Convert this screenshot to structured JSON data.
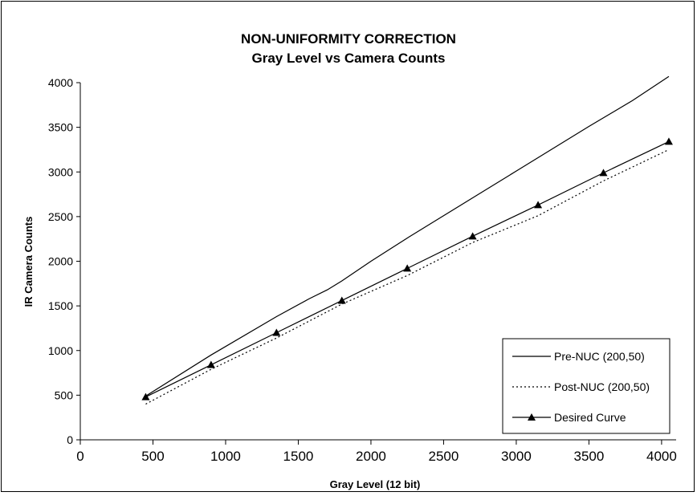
{
  "chart_data": {
    "type": "line",
    "title": "NON-UNIFORMITY CORRECTION",
    "subtitle": "Gray Level vs Camera Counts",
    "xlabel": "Gray Level (12 bit)",
    "ylabel": "IR Camera Counts",
    "xlim": [
      0,
      4100
    ],
    "ylim": [
      0,
      4000
    ],
    "xticks": [
      0,
      500,
      1000,
      1500,
      2000,
      2500,
      3000,
      3500,
      4000
    ],
    "yticks": [
      0,
      500,
      1000,
      1500,
      2000,
      2500,
      3000,
      3500,
      4000
    ],
    "grid": false,
    "legend_position": "bottom-right",
    "series": [
      {
        "name": "Pre-NUC (200,50)",
        "style": "solid",
        "marker": "none",
        "color": "#000000",
        "x": [
          450,
          900,
          1350,
          1575,
          1700,
          1800,
          2000,
          2250,
          2500,
          2700,
          3000,
          3200,
          3500,
          3800,
          4050
        ],
        "y": [
          490,
          950,
          1380,
          1580,
          1680,
          1780,
          2000,
          2260,
          2510,
          2710,
          3010,
          3210,
          3510,
          3800,
          4070
        ]
      },
      {
        "name": "Post-NUC (200,50)",
        "style": "dotted",
        "marker": "none",
        "color": "#000000",
        "x": [
          450,
          900,
          1350,
          1800,
          2250,
          2700,
          3150,
          3600,
          4050
        ],
        "y": [
          400,
          790,
          1140,
          1520,
          1840,
          2210,
          2510,
          2900,
          3250
        ]
      },
      {
        "name": "Desired Curve",
        "style": "solid",
        "marker": "triangle",
        "color": "#000000",
        "x": [
          450,
          900,
          1350,
          1800,
          2250,
          2700,
          3150,
          3600,
          4050
        ],
        "y": [
          480,
          840,
          1200,
          1560,
          1920,
          2280,
          2630,
          2990,
          3340
        ]
      }
    ]
  }
}
